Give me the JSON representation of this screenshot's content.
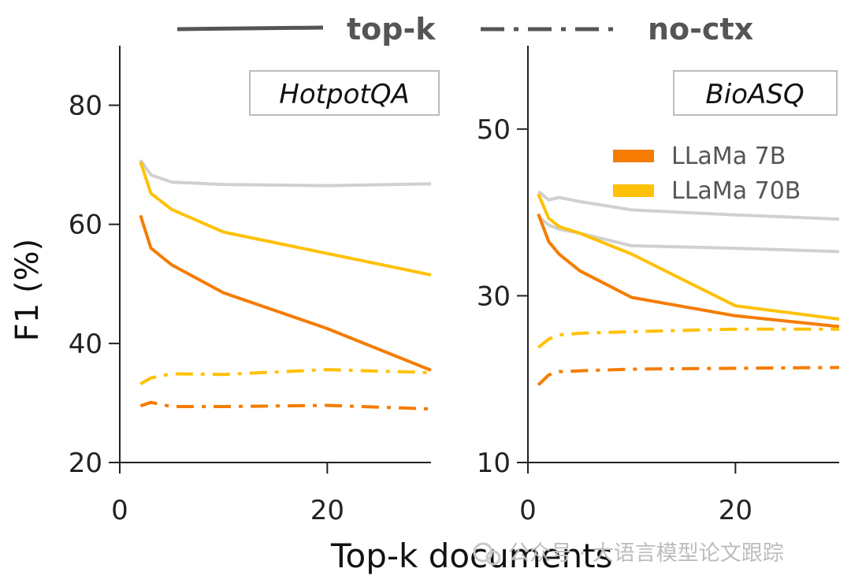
{
  "top_legend": {
    "solid_label": "top-k",
    "dashdot_label": "no-ctx",
    "color": "#555555"
  },
  "model_legend": {
    "items": [
      {
        "label": "LLaMa 7B",
        "color": "#F57C00"
      },
      {
        "label": "LLaMa 70B",
        "color": "#FFC107"
      }
    ]
  },
  "colors": {
    "reference_line": "#D0D0D0"
  },
  "watermark": "公众号 · 大语言模型论文跟踪",
  "chart_data": [
    {
      "type": "line",
      "title": "HotpotQA",
      "ylabel": "F1 (%)",
      "xlabel": "Top-k documents",
      "xlim": [
        0,
        30
      ],
      "ylim": [
        20,
        90
      ],
      "xticks": [
        "0",
        "20"
      ],
      "yticks": [
        "20",
        "40",
        "60",
        "80"
      ],
      "series": [
        {
          "model": "reference",
          "style": "solid",
          "x": [
            2,
            3,
            5,
            10,
            20,
            30
          ],
          "y": [
            70.8,
            68.3,
            67.1,
            66.7,
            66.5,
            66.8
          ]
        },
        {
          "model": "LLaMa 70B",
          "style": "solid",
          "x": [
            2,
            3,
            5,
            10,
            20,
            30
          ],
          "y": [
            70.5,
            65.2,
            62.5,
            58.7,
            55.1,
            51.5
          ]
        },
        {
          "model": "LLaMa 7B",
          "style": "solid",
          "x": [
            2,
            3,
            5,
            10,
            20,
            30
          ],
          "y": [
            61.5,
            56.0,
            53.2,
            48.5,
            42.5,
            35.5
          ]
        },
        {
          "model": "LLaMa 70B",
          "style": "dashdot",
          "x": [
            2,
            3,
            5,
            10,
            20,
            30
          ],
          "y": [
            33.2,
            34.2,
            34.9,
            34.8,
            35.6,
            35.1
          ]
        },
        {
          "model": "LLaMa 7B",
          "style": "dashdot",
          "x": [
            2,
            3,
            5,
            10,
            20,
            30
          ],
          "y": [
            29.5,
            30.1,
            29.4,
            29.4,
            29.6,
            29.0
          ]
        }
      ]
    },
    {
      "type": "line",
      "title": "BioASQ",
      "ylabel": "F1 (%)",
      "xlabel": "Top-k documents",
      "xlim": [
        0,
        30
      ],
      "ylim": [
        10,
        60
      ],
      "xticks": [
        "0",
        "20"
      ],
      "yticks": [
        "10",
        "30",
        "50"
      ],
      "series": [
        {
          "model": "reference",
          "style": "solid",
          "x": [
            1,
            2,
            3,
            5,
            10,
            20,
            30
          ],
          "y": [
            42.5,
            41.5,
            41.8,
            41.3,
            40.3,
            39.7,
            39.2
          ]
        },
        {
          "model": "reference",
          "style": "solid",
          "x": [
            1,
            2,
            3,
            5,
            10,
            20,
            30
          ],
          "y": [
            39.5,
            38.5,
            38.0,
            37.5,
            36.0,
            35.7,
            35.3
          ]
        },
        {
          "model": "LLaMa 70B",
          "style": "solid",
          "x": [
            1,
            2,
            3,
            5,
            10,
            20,
            30
          ],
          "y": [
            42.2,
            39.3,
            38.3,
            37.5,
            35.0,
            28.8,
            27.2
          ]
        },
        {
          "model": "LLaMa 7B",
          "style": "solid",
          "x": [
            1,
            2,
            3,
            5,
            10,
            20,
            30
          ],
          "y": [
            39.8,
            36.5,
            35.0,
            33.0,
            29.8,
            27.6,
            26.3
          ]
        },
        {
          "model": "LLaMa 70B",
          "style": "dashdot",
          "x": [
            1,
            2,
            3,
            5,
            10,
            20,
            30
          ],
          "y": [
            23.8,
            24.8,
            25.3,
            25.5,
            25.7,
            26.0,
            26.0
          ]
        },
        {
          "model": "LLaMa 7B",
          "style": "dashdot",
          "x": [
            1,
            2,
            3,
            5,
            10,
            20,
            30
          ],
          "y": [
            19.3,
            20.5,
            20.9,
            21.0,
            21.2,
            21.3,
            21.4
          ]
        }
      ]
    }
  ]
}
